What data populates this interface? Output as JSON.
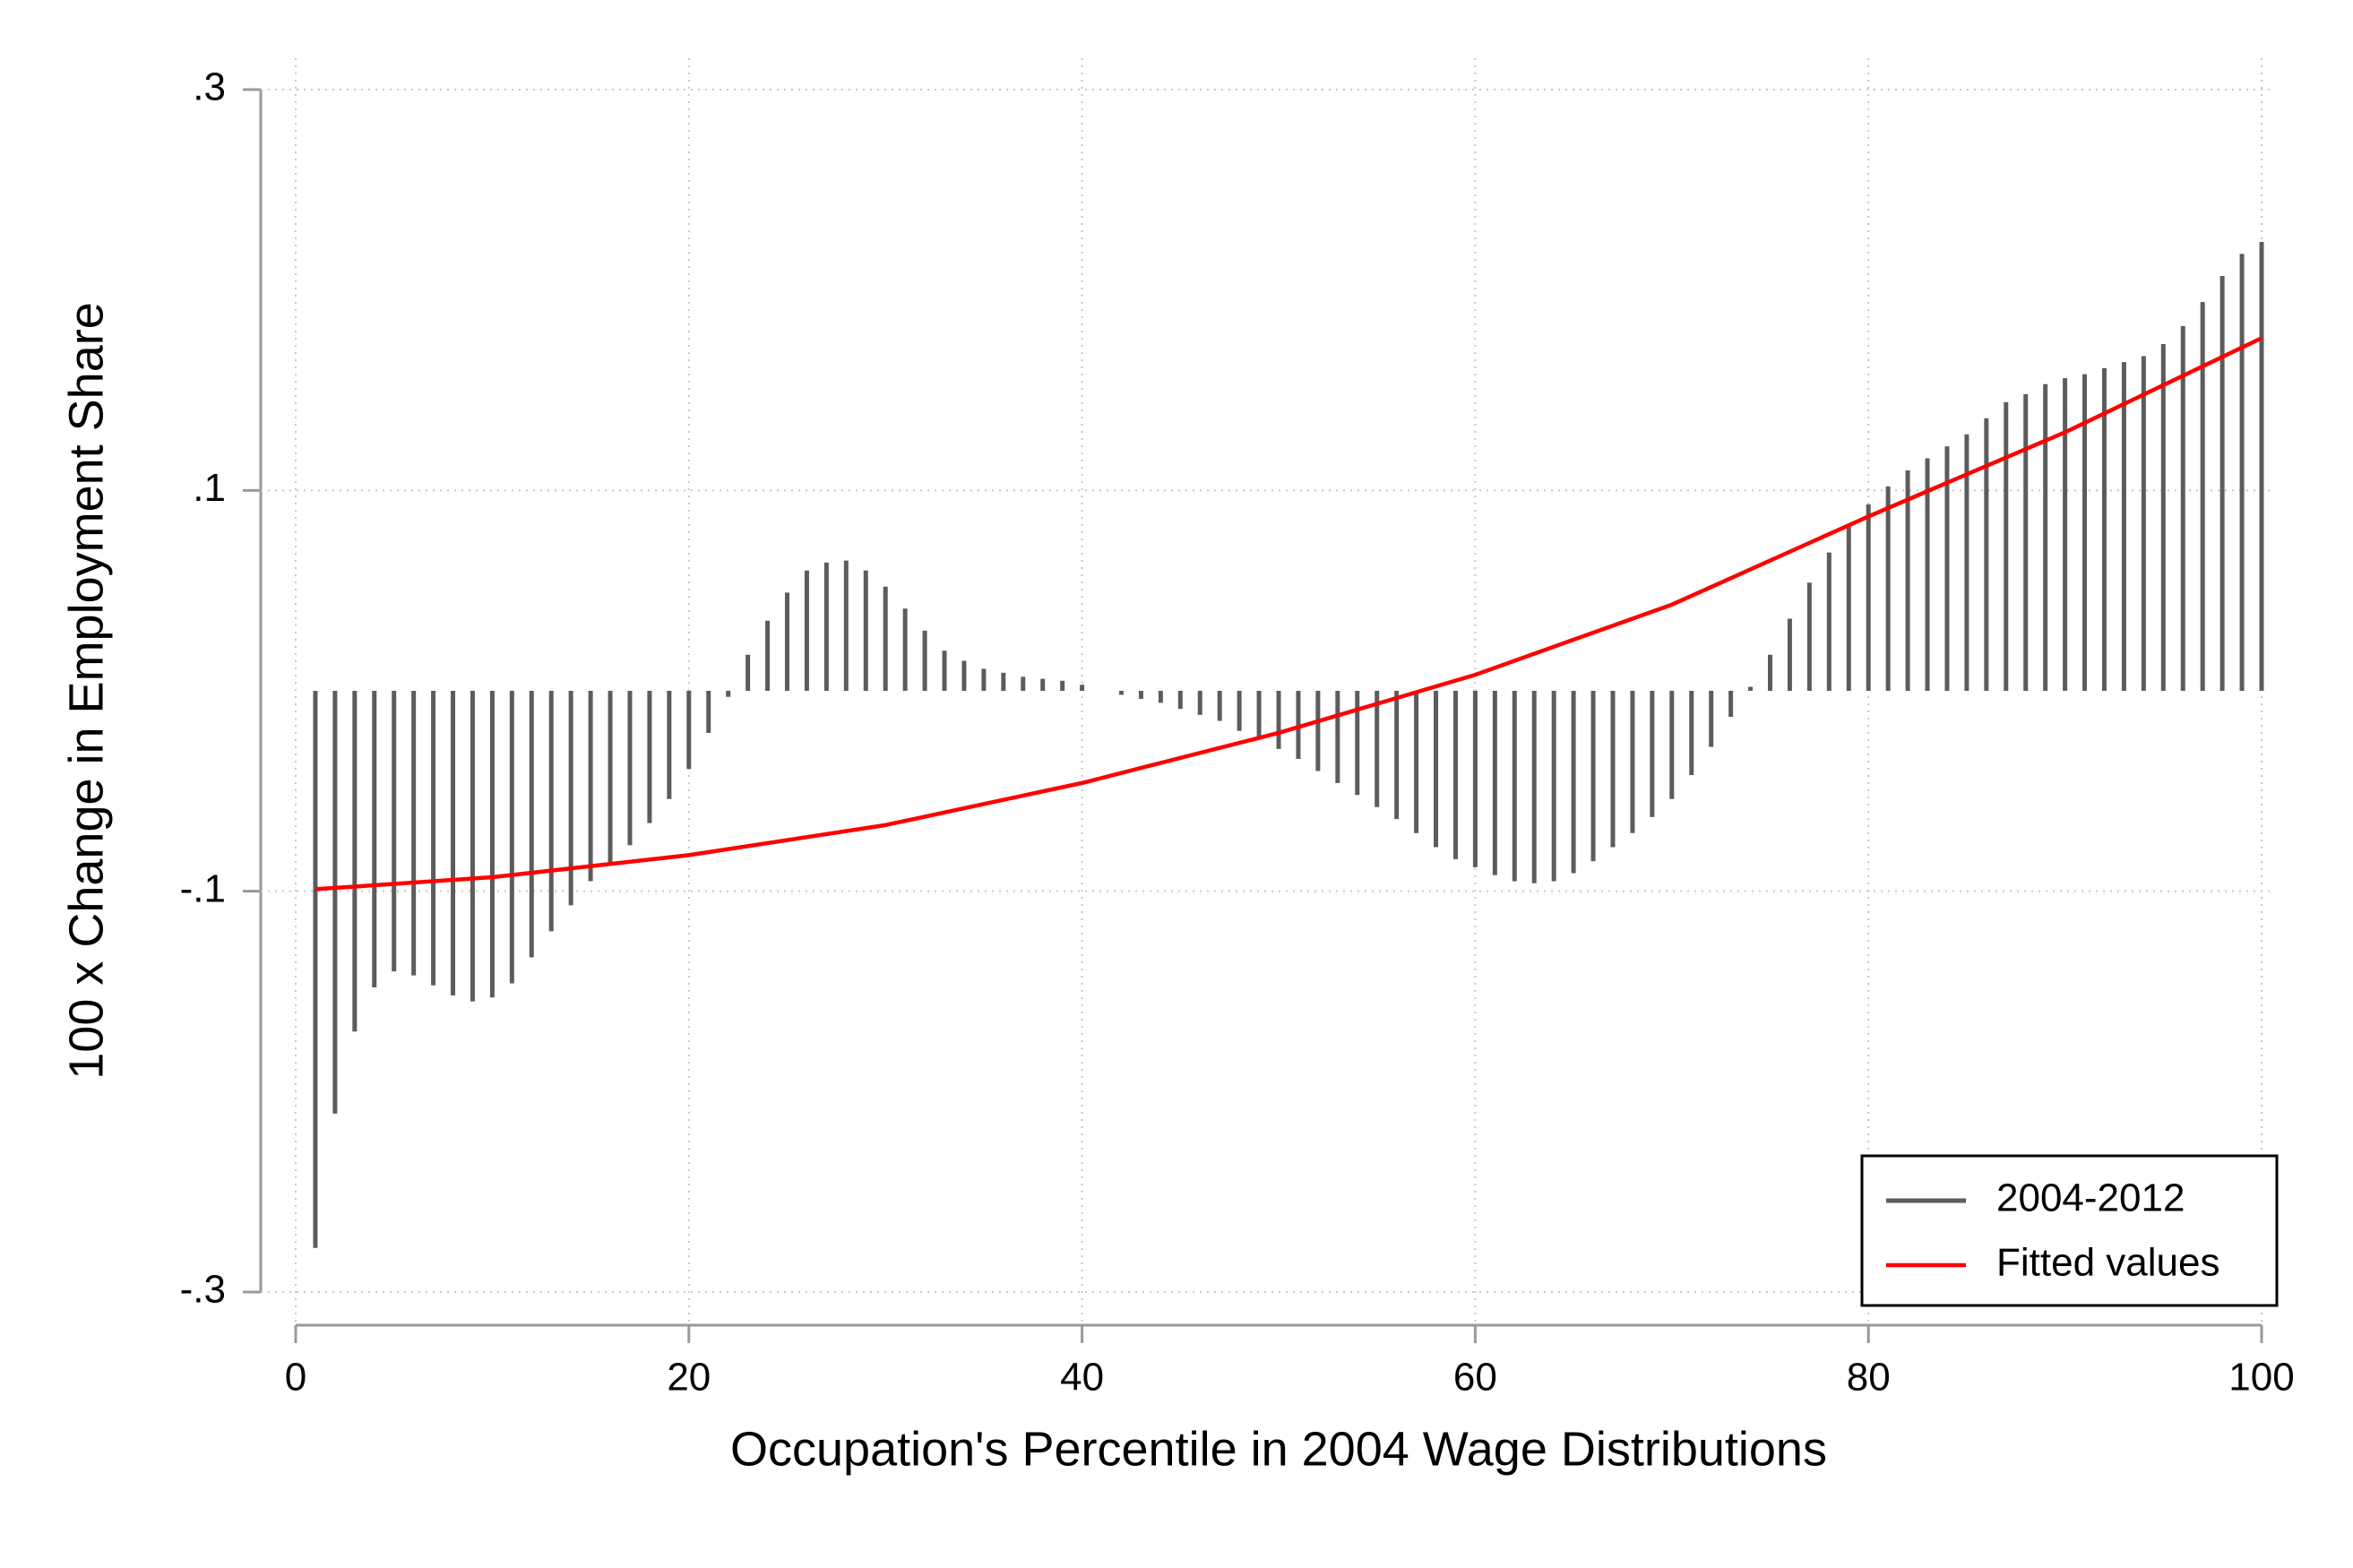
{
  "chart_data": {
    "type": "spike",
    "xlabel": "Occupation's Percentile in 2004 Wage Distributions",
    "ylabel": "100 x Change in Employment Share",
    "xlim": [
      0,
      100
    ],
    "ylim": [
      -0.3,
      0.3
    ],
    "xticks": [
      0,
      20,
      40,
      60,
      80,
      100
    ],
    "yticks": [
      {
        "value": -0.3,
        "label": "-.3"
      },
      {
        "value": -0.1,
        "label": "-.1"
      },
      {
        "value": 0.1,
        "label": ".1"
      },
      {
        "value": 0.3,
        "label": ".3"
      }
    ],
    "grid": true,
    "legend": "lower right",
    "series": [
      {
        "name": "2004-2012",
        "type": "spike",
        "color": "#5c5c5c",
        "x": [
          1,
          2,
          3,
          4,
          5,
          6,
          7,
          8,
          9,
          10,
          11,
          12,
          13,
          14,
          15,
          16,
          17,
          18,
          19,
          20,
          21,
          22,
          23,
          24,
          25,
          26,
          27,
          28,
          29,
          30,
          31,
          32,
          33,
          34,
          35,
          36,
          37,
          38,
          39,
          40,
          41,
          42,
          43,
          44,
          45,
          46,
          47,
          48,
          49,
          50,
          51,
          52,
          53,
          54,
          55,
          56,
          57,
          58,
          59,
          60,
          61,
          62,
          63,
          64,
          65,
          66,
          67,
          68,
          69,
          70,
          71,
          72,
          73,
          74,
          75,
          76,
          77,
          78,
          79,
          80,
          81,
          82,
          83,
          84,
          85,
          86,
          87,
          88,
          89,
          90,
          91,
          92,
          93,
          94,
          95,
          96,
          97,
          98,
          99,
          100
        ],
        "values": [
          -0.278,
          -0.211,
          -0.17,
          -0.148,
          -0.14,
          -0.142,
          -0.147,
          -0.152,
          -0.155,
          -0.153,
          -0.146,
          -0.133,
          -0.12,
          -0.107,
          -0.095,
          -0.086,
          -0.077,
          -0.066,
          -0.054,
          -0.039,
          -0.021,
          -0.003,
          0.018,
          0.035,
          0.049,
          0.06,
          0.064,
          0.065,
          0.06,
          0.052,
          0.041,
          0.03,
          0.02,
          0.015,
          0.011,
          0.009,
          0.007,
          0.006,
          0.005,
          0.003,
          0.0,
          -0.002,
          -0.004,
          -0.006,
          -0.009,
          -0.012,
          -0.015,
          -0.02,
          -0.024,
          -0.029,
          -0.034,
          -0.04,
          -0.046,
          -0.052,
          -0.058,
          -0.064,
          -0.071,
          -0.078,
          -0.084,
          -0.088,
          -0.092,
          -0.095,
          -0.096,
          -0.095,
          -0.091,
          -0.085,
          -0.078,
          -0.071,
          -0.063,
          -0.054,
          -0.042,
          -0.028,
          -0.013,
          0.002,
          0.018,
          0.036,
          0.054,
          0.069,
          0.082,
          0.093,
          0.102,
          0.11,
          0.116,
          0.122,
          0.128,
          0.136,
          0.144,
          0.148,
          0.153,
          0.156,
          0.158,
          0.161,
          0.164,
          0.167,
          0.173,
          0.182,
          0.194,
          0.207,
          0.218,
          0.224
        ]
      },
      {
        "name": "Fitted values",
        "type": "line",
        "color": "#ff0000",
        "x": [
          1,
          10,
          20,
          30,
          40,
          50,
          60,
          70,
          80,
          90,
          100
        ],
        "values": [
          -0.099,
          -0.093,
          -0.082,
          -0.067,
          -0.046,
          -0.021,
          0.008,
          0.043,
          0.087,
          0.129,
          0.176
        ]
      }
    ]
  }
}
